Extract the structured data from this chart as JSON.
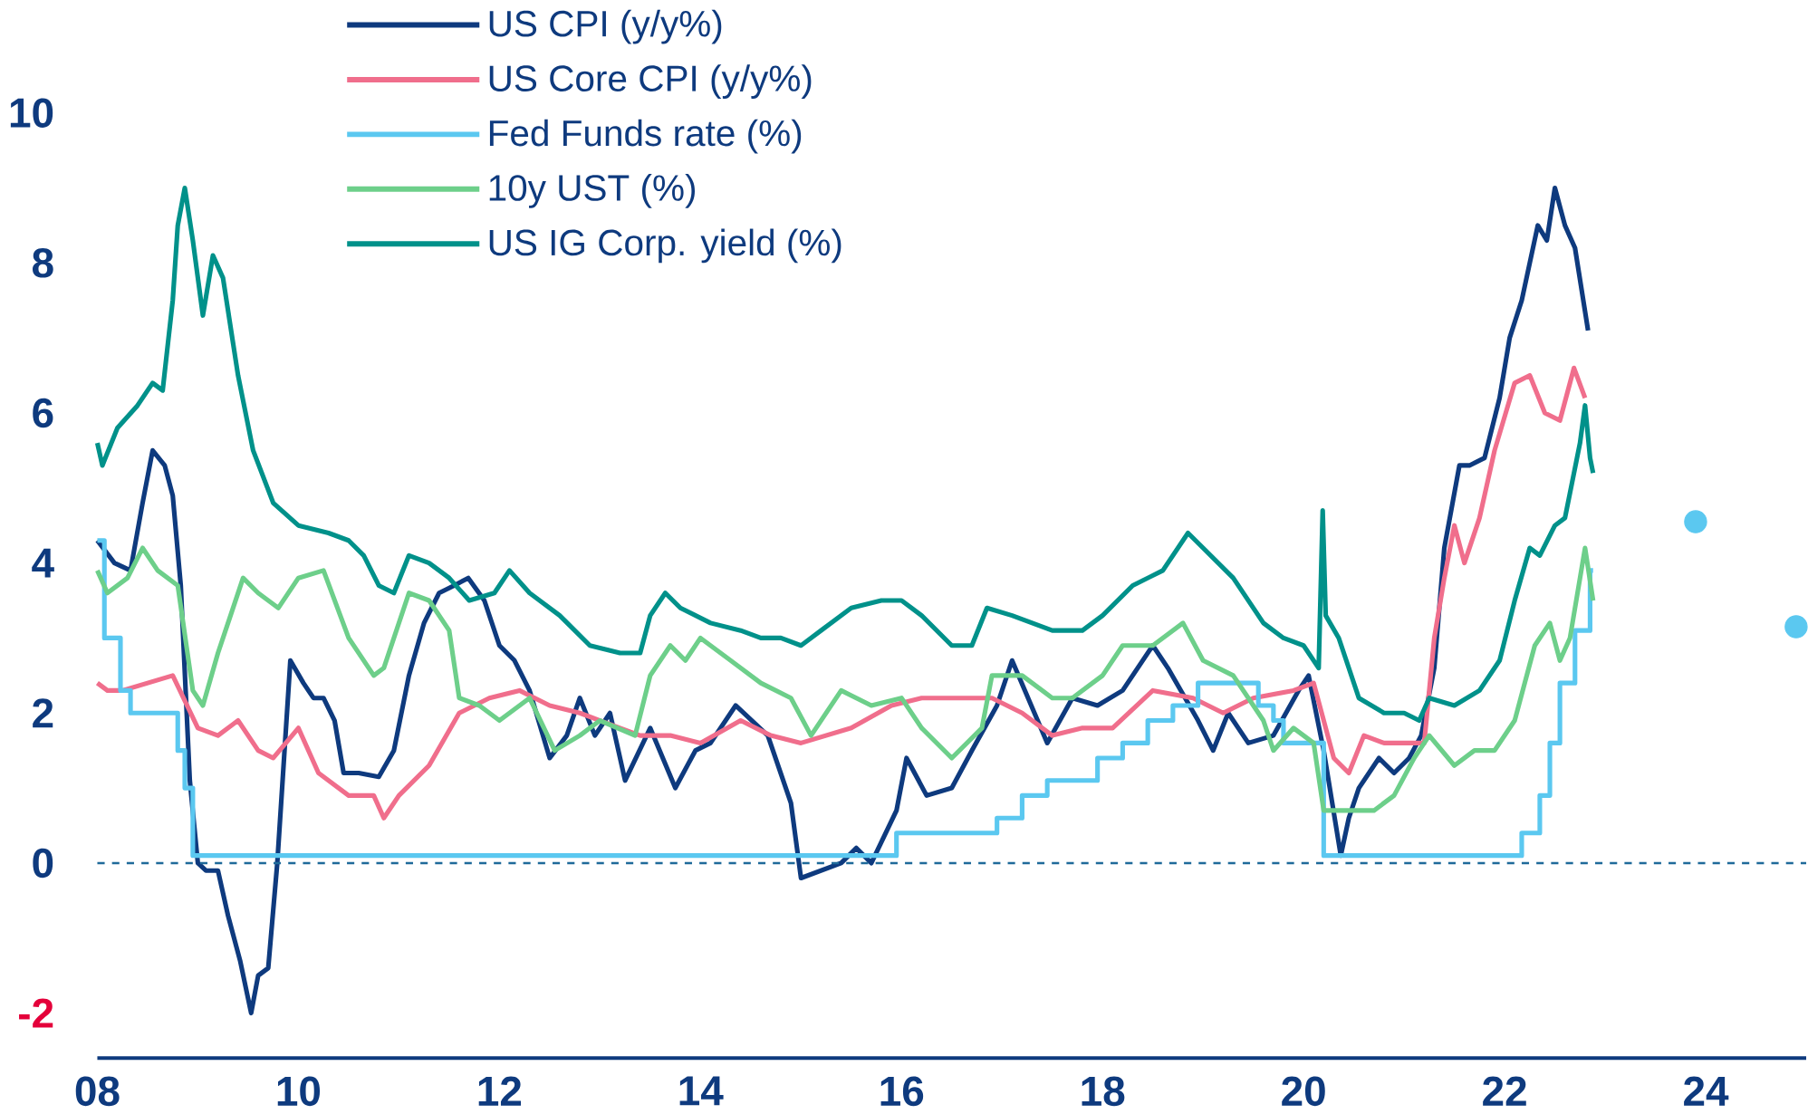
{
  "chart_data": {
    "type": "line",
    "xlim": [
      2008,
      2025
    ],
    "ylim": [
      -2.6,
      10
    ],
    "xticks": [
      {
        "value": 2008,
        "label": "08"
      },
      {
        "value": 2010,
        "label": "10"
      },
      {
        "value": 2012,
        "label": "12"
      },
      {
        "value": 2014,
        "label": "14"
      },
      {
        "value": 2016,
        "label": "16"
      },
      {
        "value": 2018,
        "label": "18"
      },
      {
        "value": 2020,
        "label": "20"
      },
      {
        "value": 2022,
        "label": "22"
      },
      {
        "value": 2024,
        "label": "24"
      }
    ],
    "yticks": [
      -2,
      0,
      2,
      4,
      6,
      8,
      10
    ],
    "legend": "top left",
    "ref_lines": [
      {
        "axis": "y",
        "value": 0,
        "color": "#1f6a9a",
        "line_style": "dashed"
      }
    ],
    "series": [
      {
        "name": "US CPI (y/y%)",
        "color": "#0e3a7e",
        "x": [
          2008.0,
          2008.17,
          2008.33,
          2008.45,
          2008.55,
          2008.67,
          2008.75,
          2008.83,
          2008.92,
          2009.0,
          2009.08,
          2009.2,
          2009.3,
          2009.42,
          2009.53,
          2009.6,
          2009.7,
          2009.79,
          2009.92,
          2010.05,
          2010.15,
          2010.25,
          2010.36,
          2010.45,
          2010.6,
          2010.8,
          2010.95,
          2011.1,
          2011.25,
          2011.4,
          2011.55,
          2011.69,
          2011.85,
          2012.0,
          2012.15,
          2012.3,
          2012.5,
          2012.67,
          2012.8,
          2012.95,
          2013.1,
          2013.25,
          2013.5,
          2013.75,
          2013.95,
          2014.1,
          2014.35,
          2014.67,
          2014.9,
          2015.0,
          2015.2,
          2015.4,
          2015.55,
          2015.7,
          2015.95,
          2016.05,
          2016.25,
          2016.5,
          2016.7,
          2016.95,
          2017.1,
          2017.45,
          2017.7,
          2017.95,
          2018.2,
          2018.5,
          2018.65,
          2018.95,
          2019.1,
          2019.25,
          2019.45,
          2019.7,
          2019.95,
          2020.05,
          2020.2,
          2020.37,
          2020.45,
          2020.55,
          2020.75,
          2020.9,
          2021.05,
          2021.17,
          2021.3,
          2021.4,
          2021.55,
          2021.65,
          2021.8,
          2021.95,
          2022.05,
          2022.17,
          2022.25,
          2022.33,
          2022.42,
          2022.5,
          2022.6,
          2022.7,
          2022.83
        ],
        "values": [
          4.3,
          4.0,
          3.9,
          4.8,
          5.5,
          5.3,
          4.9,
          3.7,
          1.1,
          0.0,
          -0.1,
          -0.1,
          -0.7,
          -1.3,
          -2.0,
          -1.5,
          -1.4,
          0.0,
          2.7,
          2.4,
          2.2,
          2.2,
          1.9,
          1.2,
          1.2,
          1.15,
          1.5,
          2.5,
          3.2,
          3.6,
          3.7,
          3.8,
          3.5,
          2.9,
          2.7,
          2.3,
          1.4,
          1.7,
          2.2,
          1.7,
          2.0,
          1.1,
          1.8,
          1.0,
          1.5,
          1.6,
          2.1,
          1.7,
          0.8,
          -0.2,
          -0.1,
          0.0,
          0.2,
          0.0,
          0.7,
          1.4,
          0.9,
          1.0,
          1.5,
          2.1,
          2.7,
          1.6,
          2.2,
          2.1,
          2.3,
          2.9,
          2.6,
          1.9,
          1.5,
          2.0,
          1.6,
          1.7,
          2.3,
          2.5,
          1.5,
          0.1,
          0.6,
          1.0,
          1.4,
          1.2,
          1.4,
          1.7,
          2.6,
          4.2,
          5.3,
          5.3,
          5.4,
          6.2,
          7.0,
          7.5,
          8.0,
          8.5,
          8.3,
          9.0,
          8.5,
          8.2,
          7.1
        ]
      },
      {
        "name": "US Core CPI (y/y%)",
        "color": "#f06e8c",
        "x": [
          2008.0,
          2008.1,
          2008.25,
          2008.5,
          2008.75,
          2009.0,
          2009.2,
          2009.4,
          2009.6,
          2009.75,
          2010.0,
          2010.2,
          2010.5,
          2010.75,
          2010.85,
          2011.0,
          2011.3,
          2011.6,
          2011.9,
          2012.2,
          2012.5,
          2012.8,
          2013.0,
          2013.4,
          2013.7,
          2014.0,
          2014.4,
          2014.7,
          2015.0,
          2015.5,
          2015.9,
          2016.2,
          2016.5,
          2016.9,
          2017.2,
          2017.5,
          2017.8,
          2018.1,
          2018.5,
          2018.9,
          2019.2,
          2019.5,
          2019.9,
          2020.1,
          2020.3,
          2020.45,
          2020.6,
          2020.8,
          2020.95,
          2021.2,
          2021.3,
          2021.4,
          2021.5,
          2021.6,
          2021.75,
          2021.9,
          2022.1,
          2022.25,
          2022.4,
          2022.55,
          2022.69,
          2022.8
        ],
        "values": [
          2.4,
          2.3,
          2.3,
          2.4,
          2.5,
          1.8,
          1.7,
          1.9,
          1.5,
          1.4,
          1.8,
          1.2,
          0.9,
          0.9,
          0.6,
          0.9,
          1.3,
          2.0,
          2.2,
          2.3,
          2.1,
          2.0,
          1.9,
          1.7,
          1.7,
          1.6,
          1.9,
          1.7,
          1.6,
          1.8,
          2.1,
          2.2,
          2.2,
          2.2,
          2.0,
          1.7,
          1.8,
          1.8,
          2.3,
          2.2,
          2.0,
          2.2,
          2.3,
          2.4,
          1.4,
          1.2,
          1.7,
          1.6,
          1.6,
          1.6,
          3.0,
          3.8,
          4.5,
          4.0,
          4.6,
          5.5,
          6.4,
          6.5,
          6.0,
          5.9,
          6.6,
          6.2
        ]
      },
      {
        "name": "Fed Funds rate (%)",
        "type": "step",
        "color": "#5bc8f0",
        "x": [
          2008.0,
          2008.07,
          2008.23,
          2008.33,
          2008.8,
          2008.87,
          2008.95,
          2015.95,
          2016.95,
          2017.2,
          2017.45,
          2017.95,
          2018.2,
          2018.45,
          2018.7,
          2018.95,
          2019.55,
          2019.7,
          2019.8,
          2020.2,
          2022.17,
          2022.35,
          2022.45,
          2022.55,
          2022.7,
          2022.85,
          2022.88
        ],
        "values": [
          4.3,
          3.0,
          2.3,
          2.0,
          1.5,
          1.0,
          0.1,
          0.4,
          0.6,
          0.9,
          1.1,
          1.4,
          1.6,
          1.9,
          2.1,
          2.4,
          2.1,
          1.9,
          1.6,
          0.1,
          0.4,
          0.9,
          1.6,
          2.4,
          3.1,
          3.9,
          3.9
        ]
      },
      {
        "name": "10y UST (%)",
        "color": "#6dcf8a",
        "x": [
          2008.0,
          2008.1,
          2008.3,
          2008.45,
          2008.6,
          2008.8,
          2008.95,
          2009.05,
          2009.2,
          2009.45,
          2009.6,
          2009.8,
          2010.0,
          2010.25,
          2010.5,
          2010.75,
          2010.85,
          2011.1,
          2011.3,
          2011.5,
          2011.6,
          2011.8,
          2012.0,
          2012.3,
          2012.55,
          2012.8,
          2013.0,
          2013.35,
          2013.5,
          2013.7,
          2013.85,
          2014.0,
          2014.3,
          2014.6,
          2014.9,
          2015.1,
          2015.4,
          2015.7,
          2016.0,
          2016.2,
          2016.5,
          2016.8,
          2016.9,
          2017.2,
          2017.5,
          2017.7,
          2018.0,
          2018.2,
          2018.5,
          2018.8,
          2019.0,
          2019.3,
          2019.6,
          2019.7,
          2019.9,
          2020.1,
          2020.2,
          2020.5,
          2020.7,
          2020.9,
          2021.1,
          2021.25,
          2021.5,
          2021.7,
          2021.9,
          2022.1,
          2022.3,
          2022.45,
          2022.55,
          2022.65,
          2022.8,
          2022.88
        ],
        "values": [
          3.9,
          3.6,
          3.8,
          4.2,
          3.9,
          3.7,
          2.3,
          2.1,
          2.8,
          3.8,
          3.6,
          3.4,
          3.8,
          3.9,
          3.0,
          2.5,
          2.6,
          3.6,
          3.5,
          3.1,
          2.2,
          2.1,
          1.9,
          2.2,
          1.5,
          1.7,
          1.9,
          1.7,
          2.5,
          2.9,
          2.7,
          3.0,
          2.7,
          2.4,
          2.2,
          1.7,
          2.3,
          2.1,
          2.2,
          1.8,
          1.4,
          1.8,
          2.5,
          2.5,
          2.2,
          2.2,
          2.5,
          2.9,
          2.9,
          3.2,
          2.7,
          2.5,
          1.9,
          1.5,
          1.8,
          1.6,
          0.7,
          0.7,
          0.7,
          0.9,
          1.4,
          1.7,
          1.3,
          1.5,
          1.5,
          1.9,
          2.9,
          3.2,
          2.7,
          3.0,
          4.2,
          3.5
        ]
      },
      {
        "name": "US IG Corp. yield (%)",
        "color": "#00918a",
        "x": [
          2008.0,
          2008.05,
          2008.2,
          2008.4,
          2008.55,
          2008.65,
          2008.75,
          2008.8,
          2008.87,
          2008.95,
          2009.05,
          2009.15,
          2009.25,
          2009.4,
          2009.55,
          2009.75,
          2010.0,
          2010.3,
          2010.5,
          2010.65,
          2010.8,
          2010.95,
          2011.1,
          2011.3,
          2011.5,
          2011.7,
          2011.95,
          2012.1,
          2012.3,
          2012.6,
          2012.9,
          2013.2,
          2013.4,
          2013.5,
          2013.65,
          2013.8,
          2014.1,
          2014.4,
          2014.6,
          2014.8,
          2015.0,
          2015.2,
          2015.5,
          2015.8,
          2016.0,
          2016.2,
          2016.5,
          2016.7,
          2016.85,
          2017.1,
          2017.5,
          2017.8,
          2018.0,
          2018.3,
          2018.6,
          2018.85,
          2019.0,
          2019.3,
          2019.6,
          2019.8,
          2020.0,
          2020.15,
          2020.19,
          2020.22,
          2020.35,
          2020.55,
          2020.8,
          2021.0,
          2021.15,
          2021.25,
          2021.5,
          2021.75,
          2021.95,
          2022.1,
          2022.25,
          2022.35,
          2022.5,
          2022.6,
          2022.75,
          2022.8,
          2022.85,
          2022.88
        ],
        "values": [
          5.6,
          5.3,
          5.8,
          6.1,
          6.4,
          6.3,
          7.5,
          8.5,
          9.0,
          8.3,
          7.3,
          8.1,
          7.8,
          6.5,
          5.5,
          4.8,
          4.5,
          4.4,
          4.3,
          4.1,
          3.7,
          3.6,
          4.1,
          4.0,
          3.8,
          3.5,
          3.6,
          3.9,
          3.6,
          3.3,
          2.9,
          2.8,
          2.8,
          3.3,
          3.6,
          3.4,
          3.2,
          3.1,
          3.0,
          3.0,
          2.9,
          3.1,
          3.4,
          3.5,
          3.5,
          3.3,
          2.9,
          2.9,
          3.4,
          3.3,
          3.1,
          3.1,
          3.3,
          3.7,
          3.9,
          4.4,
          4.2,
          3.8,
          3.2,
          3.0,
          2.9,
          2.6,
          4.7,
          3.3,
          3.0,
          2.2,
          2.0,
          2.0,
          1.9,
          2.2,
          2.1,
          2.3,
          2.7,
          3.5,
          4.2,
          4.1,
          4.5,
          4.6,
          5.6,
          6.1,
          5.4,
          5.2
        ]
      },
      {
        "type": "scatter",
        "color": "#5bc8f0",
        "x": [
          2023.9,
          2024.9
        ],
        "values": [
          4.55,
          3.15
        ]
      }
    ]
  }
}
